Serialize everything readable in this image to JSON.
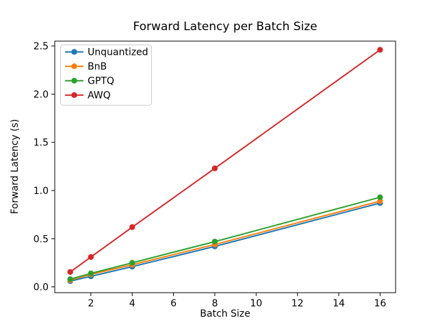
{
  "chart_data": {
    "type": "line",
    "title": "Forward Latency per Batch Size",
    "xlabel": "Batch Size",
    "ylabel": "Forward Latency (s)",
    "x": [
      1,
      2,
      4,
      8,
      16
    ],
    "series": [
      {
        "name": "Unquantized",
        "color": "#1f77b4",
        "values": [
          0.06,
          0.11,
          0.21,
          0.42,
          0.87
        ]
      },
      {
        "name": "BnB",
        "color": "#ff7f0e",
        "values": [
          0.07,
          0.13,
          0.23,
          0.44,
          0.89
        ]
      },
      {
        "name": "GPTQ",
        "color": "#2ca02c",
        "values": [
          0.08,
          0.14,
          0.25,
          0.47,
          0.93
        ]
      },
      {
        "name": "AWQ",
        "color": "#d62728",
        "values": [
          0.155,
          0.31,
          0.62,
          1.23,
          2.46
        ]
      }
    ],
    "xticks": [
      "2",
      "4",
      "6",
      "8",
      "10",
      "12",
      "14",
      "16"
    ],
    "yticks": [
      "0.0",
      "0.5",
      "1.0",
      "1.5",
      "2.0",
      "2.5"
    ],
    "xlim": [
      0.25,
      16.75
    ],
    "ylim": [
      -0.06,
      2.55
    ],
    "legend_position": "upper-left",
    "legend_entries": [
      "Unquantized",
      "BnB",
      "GPTQ",
      "AWQ"
    ],
    "grid": false,
    "marker": "o",
    "spine_color": "#000000",
    "legend_border_color": "#cccccc",
    "background_color": "#ffffff"
  }
}
